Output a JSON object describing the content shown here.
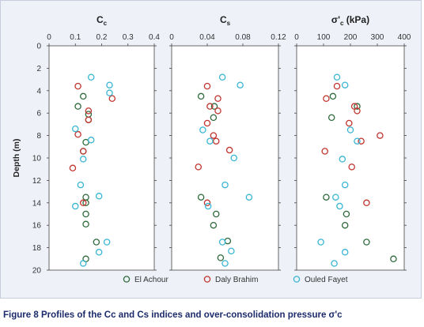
{
  "caption": {
    "figure_number": "Figure 8",
    "text": "Profiles of the Cc and Cs indices and over-consolidation pressure σ'c"
  },
  "colors": {
    "el_achour": "#2e6b3c",
    "daly_brahim": "#c0352e",
    "ouled_fayet": "#39b6d4",
    "panel_bg": "#ffffff",
    "figure_bg": "#eef1f8",
    "axis": "#444444"
  },
  "chart_data": {
    "type": "scatter",
    "ylabel": "Depth (m)",
    "ylim": [
      0,
      20
    ],
    "y_ticks": [
      "0",
      "2",
      "4",
      "6",
      "8",
      "10",
      "12",
      "14",
      "16",
      "18",
      "20"
    ],
    "y_inverted": true,
    "legend_placement": "bottom",
    "series_names": [
      "El Achour",
      "Daly Brahim",
      "Ouled Fayet"
    ],
    "panels": [
      {
        "title_main": "C",
        "title_sub": "c",
        "title_suffix": "",
        "xlim": [
          0,
          0.4
        ],
        "x_ticks": [
          "0",
          "0.1",
          "0.2",
          "0.3",
          "0.4"
        ],
        "series": [
          {
            "name": "El Achour",
            "points": [
              [
                0.13,
                4.5
              ],
              [
                0.11,
                5.4
              ],
              [
                0.15,
                6.1
              ],
              [
                0.15,
                6.6
              ],
              [
                0.14,
                8.6
              ],
              [
                0.13,
                9.4
              ],
              [
                0.14,
                13.5
              ],
              [
                0.14,
                14.0
              ],
              [
                0.14,
                15.0
              ],
              [
                0.14,
                15.9
              ],
              [
                0.18,
                17.5
              ],
              [
                0.14,
                19.0
              ]
            ]
          },
          {
            "name": "Daly Brahim",
            "points": [
              [
                0.11,
                3.6
              ],
              [
                0.24,
                4.7
              ],
              [
                0.15,
                5.8
              ],
              [
                0.15,
                6.6
              ],
              [
                0.11,
                7.9
              ],
              [
                0.13,
                9.4
              ],
              [
                0.09,
                10.9
              ],
              [
                0.13,
                14.0
              ]
            ]
          },
          {
            "name": "Ouled Fayet",
            "points": [
              [
                0.16,
                2.8
              ],
              [
                0.23,
                3.5
              ],
              [
                0.23,
                4.2
              ],
              [
                0.1,
                7.4
              ],
              [
                0.16,
                8.4
              ],
              [
                0.13,
                10.1
              ],
              [
                0.12,
                12.4
              ],
              [
                0.19,
                13.4
              ],
              [
                0.1,
                14.3
              ],
              [
                0.22,
                17.5
              ],
              [
                0.19,
                18.4
              ],
              [
                0.13,
                19.4
              ]
            ]
          }
        ]
      },
      {
        "title_main": "C",
        "title_sub": "s",
        "title_suffix": "",
        "xlim": [
          0,
          0.12
        ],
        "x_ticks": [
          "0",
          "0.04",
          "0.08",
          "0.12"
        ],
        "series": [
          {
            "name": "El Achour",
            "points": [
              [
                0.033,
                4.5
              ],
              [
                0.048,
                5.4
              ],
              [
                0.047,
                6.4
              ],
              [
                0.033,
                13.5
              ],
              [
                0.05,
                15.0
              ],
              [
                0.047,
                16.0
              ],
              [
                0.063,
                17.4
              ],
              [
                0.055,
                18.9
              ]
            ]
          },
          {
            "name": "Daly Brahim",
            "points": [
              [
                0.04,
                3.6
              ],
              [
                0.052,
                4.7
              ],
              [
                0.043,
                5.4
              ],
              [
                0.052,
                5.8
              ],
              [
                0.04,
                6.9
              ],
              [
                0.047,
                8.0
              ],
              [
                0.05,
                8.5
              ],
              [
                0.065,
                9.3
              ],
              [
                0.03,
                10.8
              ],
              [
                0.04,
                14.0
              ]
            ]
          },
          {
            "name": "Ouled Fayet",
            "points": [
              [
                0.057,
                2.8
              ],
              [
                0.077,
                3.5
              ],
              [
                0.035,
                7.5
              ],
              [
                0.043,
                8.5
              ],
              [
                0.07,
                10.0
              ],
              [
                0.06,
                12.4
              ],
              [
                0.087,
                13.5
              ],
              [
                0.041,
                14.3
              ],
              [
                0.057,
                17.5
              ],
              [
                0.067,
                18.3
              ],
              [
                0.06,
                19.4
              ]
            ]
          }
        ]
      },
      {
        "title_main": "σ'",
        "title_sub": "c",
        "title_suffix": " (kPa)",
        "xlim": [
          0,
          400
        ],
        "x_ticks": [
          "0",
          "100",
          "200",
          "300",
          "400"
        ],
        "series": [
          {
            "name": "El Achour",
            "points": [
              [
                135,
                4.5
              ],
              [
                225,
                5.4
              ],
              [
                130,
                6.4
              ],
              [
                110,
                13.5
              ],
              [
                185,
                15.0
              ],
              [
                180,
                16.0
              ],
              [
                260,
                17.5
              ],
              [
                360,
                19.0
              ]
            ]
          },
          {
            "name": "Daly Brahim",
            "points": [
              [
                150,
                3.6
              ],
              [
                110,
                4.7
              ],
              [
                215,
                5.4
              ],
              [
                225,
                5.8
              ],
              [
                195,
                6.9
              ],
              [
                310,
                8.0
              ],
              [
                240,
                8.5
              ],
              [
                105,
                9.4
              ],
              [
                205,
                10.8
              ],
              [
                260,
                14.0
              ]
            ]
          },
          {
            "name": "Ouled Fayet",
            "points": [
              [
                150,
                2.8
              ],
              [
                180,
                3.5
              ],
              [
                200,
                7.5
              ],
              [
                225,
                8.5
              ],
              [
                170,
                10.1
              ],
              [
                180,
                12.4
              ],
              [
                145,
                13.5
              ],
              [
                160,
                14.3
              ],
              [
                90,
                17.5
              ],
              [
                180,
                18.4
              ],
              [
                140,
                19.4
              ]
            ]
          }
        ]
      }
    ]
  }
}
